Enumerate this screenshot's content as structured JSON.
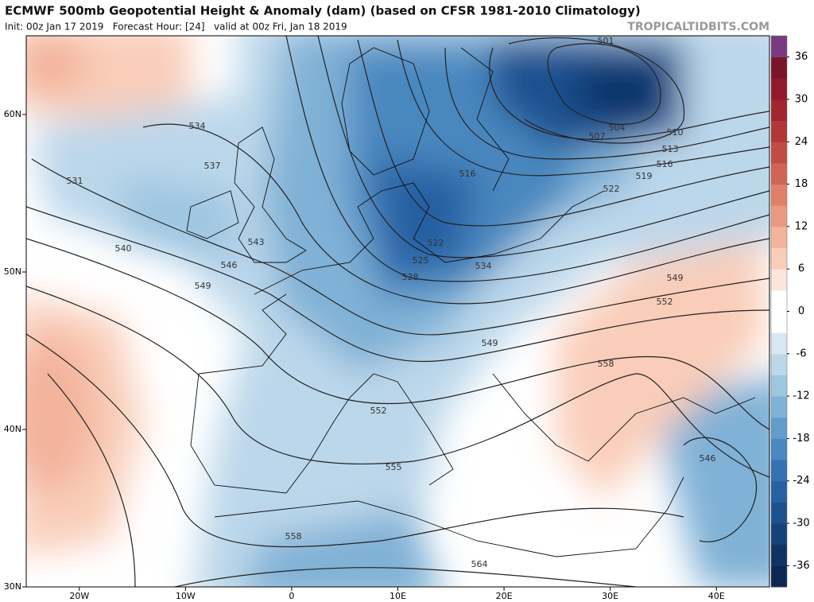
{
  "header": {
    "title": "ECMWF 500mb Geopotential Height & Anomaly (dam) (based on CFSR 1981-2010 Climatology)",
    "subtitle": "Init: 00z Jan 17 2019   Forecast Hour: [24]   valid at 00z Fri, Jan 18 2019",
    "site": "TROPICALTIDBITS.COM"
  },
  "map": {
    "lon_range": [
      -25,
      45
    ],
    "lat_range": [
      30,
      65
    ],
    "lon_ticks": [
      {
        "value": -20,
        "label": "20W"
      },
      {
        "value": -10,
        "label": "10W"
      },
      {
        "value": 0,
        "label": "0"
      },
      {
        "value": 10,
        "label": "10E"
      },
      {
        "value": 20,
        "label": "20E"
      },
      {
        "value": 30,
        "label": "30E"
      },
      {
        "value": 40,
        "label": "40E"
      }
    ],
    "lat_ticks": [
      {
        "value": 60,
        "label": "60N"
      },
      {
        "value": 50,
        "label": "50N"
      },
      {
        "value": 40,
        "label": "40N"
      },
      {
        "value": 30,
        "label": "30N"
      }
    ],
    "contour_labels": [
      "501",
      "504",
      "507",
      "510",
      "513",
      "516",
      "519",
      "522",
      "516",
      "534",
      "537",
      "531",
      "540",
      "543",
      "546",
      "549",
      "522",
      "525",
      "528",
      "534",
      "549",
      "552",
      "549",
      "558",
      "552",
      "555",
      "558",
      "564",
      "546"
    ]
  },
  "colorbar": {
    "range": [
      -39,
      39
    ],
    "ticks": [
      36,
      30,
      24,
      18,
      12,
      6,
      0,
      -6,
      -12,
      -18,
      -24,
      -30,
      -36
    ]
  }
}
